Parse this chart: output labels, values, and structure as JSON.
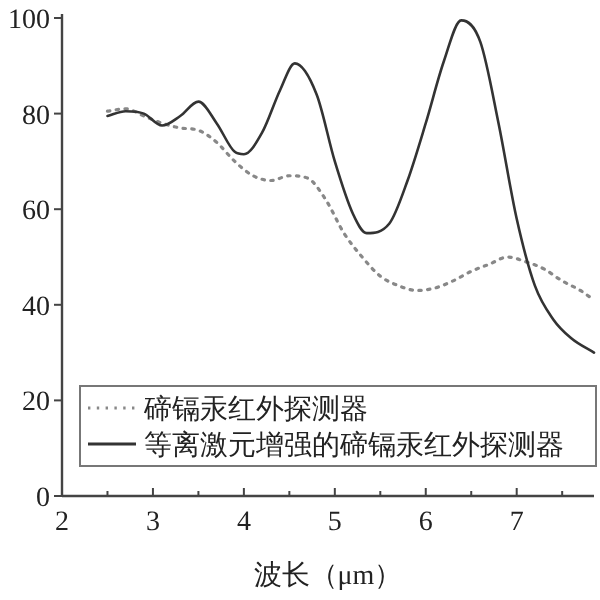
{
  "chart_data": {
    "type": "line",
    "xlabel": "波长（μm）",
    "xlim": [
      2,
      7.85
    ],
    "xticks": [
      2,
      3,
      4,
      5,
      6,
      7
    ],
    "ylim": [
      0,
      100
    ],
    "yticks": [
      0,
      20,
      40,
      60,
      80,
      100
    ],
    "legend": "bottom left",
    "marker": "none",
    "series": [
      {
        "name": "碲镉汞红外探测器",
        "color": "#888888",
        "line_style": "dotted",
        "x": [
          2.5,
          2.7,
          2.9,
          3.1,
          3.3,
          3.5,
          3.7,
          3.9,
          4.1,
          4.3,
          4.5,
          4.7,
          4.9,
          5.1,
          5.3,
          5.5,
          5.7,
          5.9,
          6.1,
          6.3,
          6.5,
          6.7,
          6.9,
          7.1,
          7.3,
          7.5,
          7.7,
          7.85
        ],
        "values": [
          80.5,
          81,
          79.5,
          78,
          77,
          76.5,
          74,
          70,
          67,
          66,
          67,
          66.5,
          62,
          55,
          50,
          46,
          44,
          43,
          43.5,
          45,
          47,
          48.5,
          50,
          49,
          47.5,
          45,
          43,
          41
        ]
      },
      {
        "name": "等离激元增强的碲镉汞红外探测器",
        "color": "#333333",
        "line_style": "solid",
        "x": [
          2.5,
          2.7,
          2.9,
          3.1,
          3.3,
          3.5,
          3.7,
          3.9,
          4.0,
          4.2,
          4.4,
          4.56,
          4.8,
          5.0,
          5.2,
          5.35,
          5.6,
          5.8,
          6.0,
          6.2,
          6.39,
          6.6,
          6.8,
          7.0,
          7.2,
          7.4,
          7.6,
          7.85
        ],
        "values": [
          79.5,
          80.5,
          80,
          77.5,
          79.5,
          82.5,
          78,
          72,
          71.5,
          76,
          85,
          90.5,
          84,
          70,
          59,
          55,
          57,
          66,
          78,
          91,
          99.5,
          95,
          78,
          58,
          44,
          37,
          33,
          30
        ]
      }
    ]
  }
}
